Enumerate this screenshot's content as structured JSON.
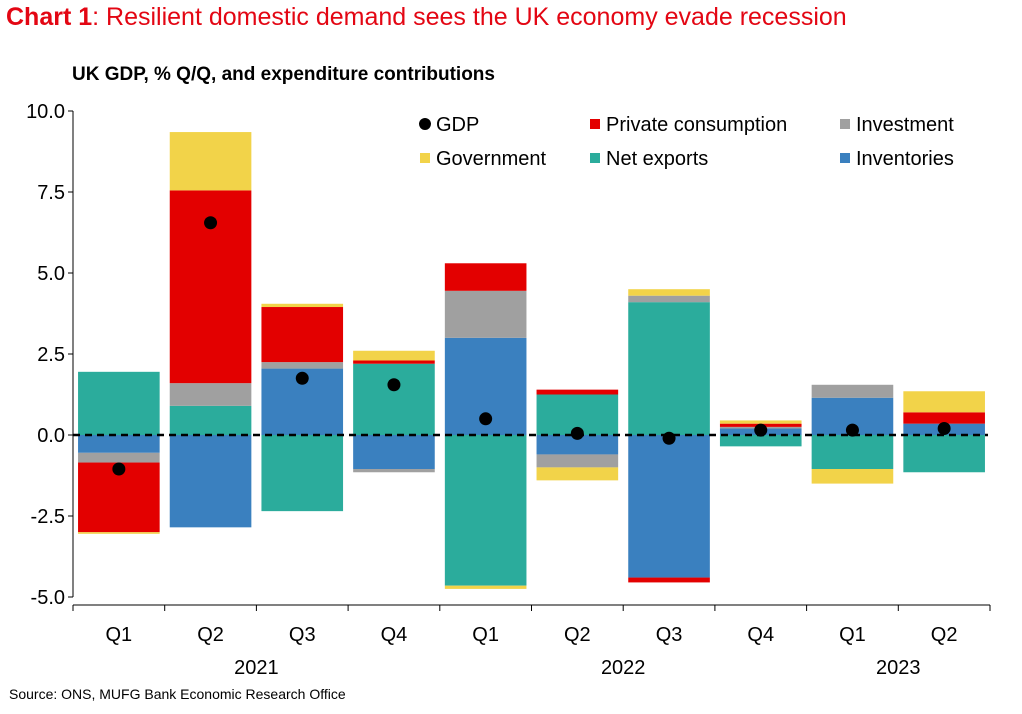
{
  "header": {
    "chart_label": "Chart 1",
    "title": ": Resilient domestic demand sees the UK economy evade recession"
  },
  "footer": {
    "source": "Source: ONS, MUFG Bank Economic Research Office"
  },
  "colors": {
    "title_red": "#e30613",
    "gdp": "#000000",
    "private_consumption": "#e30000",
    "investment": "#a0a0a0",
    "government": "#f2d349",
    "net_exports": "#2bac9c",
    "inventories": "#3a80bf"
  },
  "chart_data": {
    "type": "bar",
    "title": "UK GDP, % Q/Q, and expenditure contributions",
    "ylim": [
      -5.0,
      10.0
    ],
    "yticks": [
      10.0,
      7.5,
      5.0,
      2.5,
      0.0,
      -2.5,
      -5.0
    ],
    "ytick_labels": [
      "10.0",
      "7.5",
      "5.0",
      "2.5",
      "0.0",
      "-2.5",
      "-5.0"
    ],
    "categories": [
      "Q1",
      "Q2",
      "Q3",
      "Q4",
      "Q1",
      "Q2",
      "Q3",
      "Q4",
      "Q1",
      "Q2"
    ],
    "years": [
      {
        "label": "2021",
        "start": 0,
        "end": 3
      },
      {
        "label": "2022",
        "start": 4,
        "end": 7
      },
      {
        "label": "2023",
        "start": 8,
        "end": 9
      }
    ],
    "legend_position": "top-right",
    "legend": [
      {
        "key": "gdp",
        "label": "GDP",
        "marker": "dot"
      },
      {
        "key": "private_consumption",
        "label": "Private consumption",
        "marker": "square"
      },
      {
        "key": "investment",
        "label": "Investment",
        "marker": "square"
      },
      {
        "key": "government",
        "label": "Government",
        "marker": "square"
      },
      {
        "key": "net_exports",
        "label": "Net exports",
        "marker": "square"
      },
      {
        "key": "inventories",
        "label": "Inventories",
        "marker": "square"
      }
    ],
    "stack_order": [
      "inventories",
      "net_exports",
      "investment",
      "private_consumption",
      "government"
    ],
    "series": [
      {
        "key": "private_consumption",
        "name": "Private consumption",
        "values": [
          -2.15,
          5.95,
          1.7,
          0.1,
          0.85,
          0.15,
          -0.15,
          0.1,
          0.0,
          0.35
        ]
      },
      {
        "key": "investment",
        "name": "Investment",
        "values": [
          -0.3,
          0.7,
          0.2,
          -0.1,
          1.45,
          -0.4,
          0.2,
          0.05,
          0.4,
          0.0
        ]
      },
      {
        "key": "government",
        "name": "Government",
        "values": [
          -0.05,
          1.8,
          0.1,
          0.3,
          -0.1,
          -0.4,
          0.2,
          0.1,
          -0.45,
          0.65
        ]
      },
      {
        "key": "net_exports",
        "name": "Net exports",
        "values": [
          1.95,
          0.9,
          -2.35,
          2.2,
          -4.65,
          1.25,
          4.1,
          -0.35,
          -1.05,
          -1.15
        ]
      },
      {
        "key": "inventories",
        "name": "Inventories",
        "values": [
          -0.55,
          -2.85,
          2.05,
          -1.05,
          3.0,
          -0.6,
          -4.4,
          0.2,
          1.15,
          0.35
        ]
      }
    ],
    "gdp": {
      "name": "GDP",
      "values": [
        -1.05,
        6.55,
        1.75,
        1.55,
        0.5,
        0.05,
        -0.1,
        0.15,
        0.15,
        0.2
      ]
    }
  }
}
